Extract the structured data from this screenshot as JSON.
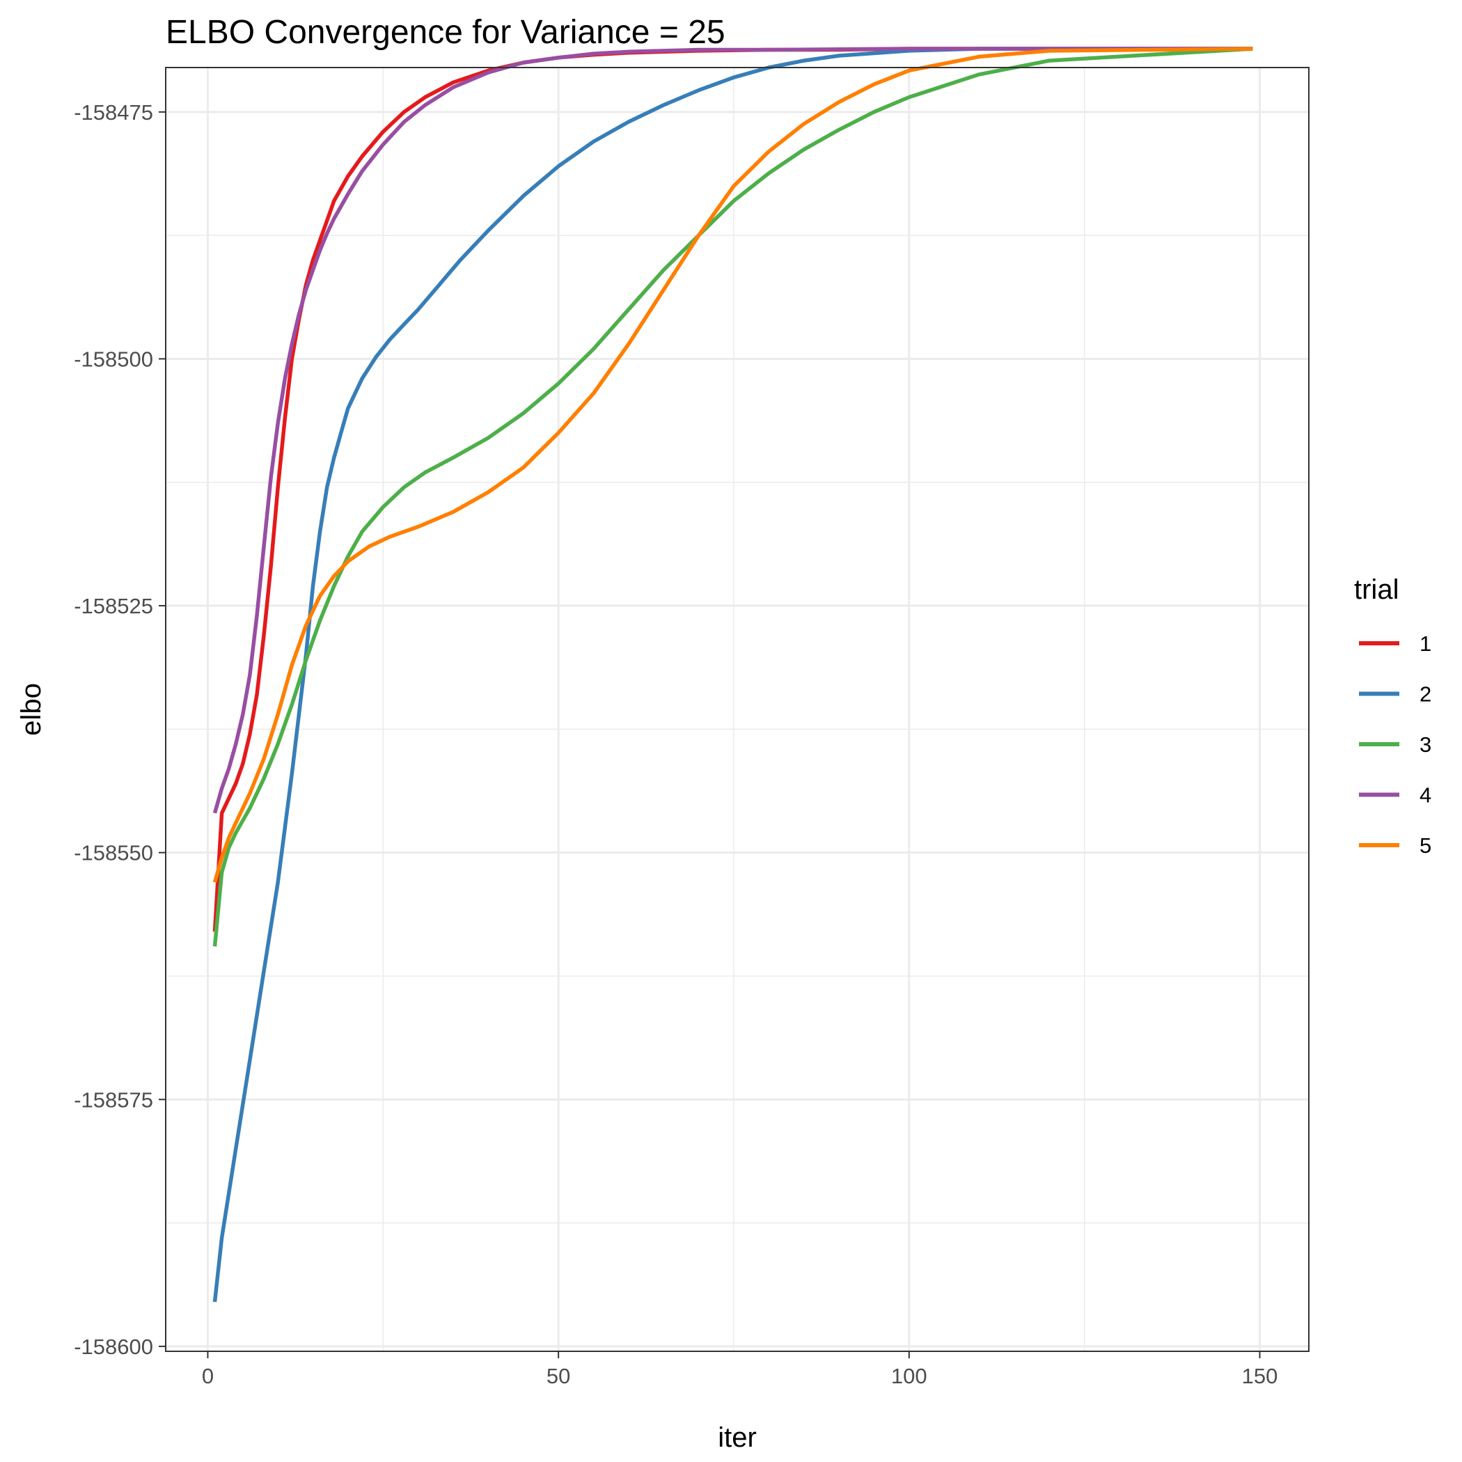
{
  "chart_data": {
    "type": "line",
    "title": "ELBO Convergence for Variance = 25",
    "xlabel": "iter",
    "ylabel": "elbo",
    "xlim": [
      -6,
      157
    ],
    "ylim": [
      -158600.5,
      -158470.5
    ],
    "x_ticks": [
      0,
      50,
      100,
      150
    ],
    "x_tick_labels": [
      "0",
      "50",
      "100",
      "150"
    ],
    "y_ticks": [
      -158600,
      -158575,
      -158550,
      -158525,
      -158500,
      -158475
    ],
    "y_tick_labels": [
      "-158600",
      "-158575",
      "-158550",
      "-158525",
      "-158500",
      "-158475"
    ],
    "x_minor_ticks": [
      25,
      75,
      125
    ],
    "y_minor_ticks": [
      -158587.5,
      -158562.5,
      -158537.5,
      -158512.5,
      -158487.5
    ],
    "grid": true,
    "legend": {
      "title": "trial",
      "position": "right"
    },
    "series": [
      {
        "name": "1",
        "color": "#e41a1c",
        "x": [
          1,
          2,
          3,
          4,
          5,
          6,
          7,
          8,
          9,
          10,
          11,
          12,
          13,
          14,
          15,
          16,
          17,
          18,
          20,
          22,
          25,
          28,
          31,
          35,
          40,
          45,
          50,
          55,
          60,
          70,
          80,
          90,
          100,
          149
        ],
        "y": [
          -158558,
          -158546,
          -158544.5,
          -158543,
          -158541,
          -158538,
          -158534,
          -158528,
          -158521,
          -158513,
          -158506,
          -158500,
          -158496,
          -158492.5,
          -158490,
          -158488,
          -158486,
          -158484,
          -158481.5,
          -158479.5,
          -158477,
          -158475,
          -158473.5,
          -158472,
          -158470.8,
          -158470,
          -158469.5,
          -158469.2,
          -158469,
          -158468.8,
          -158468.7,
          -158468.7,
          -158468.6,
          -158468.6
        ]
      },
      {
        "name": "2",
        "color": "#377eb8",
        "x": [
          1,
          2,
          4,
          6,
          8,
          10,
          12,
          14,
          15,
          16,
          17,
          18,
          19,
          20,
          22,
          24,
          26,
          28,
          30,
          33,
          36,
          40,
          45,
          50,
          55,
          60,
          65,
          70,
          75,
          80,
          85,
          90,
          100,
          110,
          149
        ],
        "y": [
          -158595.5,
          -158589,
          -158580,
          -158571,
          -158562,
          -158553,
          -158542,
          -158530,
          -158523,
          -158517.5,
          -158513,
          -158510,
          -158507.5,
          -158505,
          -158502,
          -158499.8,
          -158498,
          -158496.5,
          -158495,
          -158492.5,
          -158490,
          -158487,
          -158483.5,
          -158480.5,
          -158478,
          -158476,
          -158474.3,
          -158472.8,
          -158471.5,
          -158470.5,
          -158469.8,
          -158469.3,
          -158468.8,
          -158468.6,
          -158468.6
        ]
      },
      {
        "name": "3",
        "color": "#4daf4a",
        "x": [
          1,
          2,
          3,
          4,
          6,
          8,
          10,
          12,
          14,
          16,
          18,
          20,
          22,
          25,
          28,
          31,
          35,
          40,
          45,
          50,
          55,
          60,
          65,
          70,
          75,
          80,
          85,
          90,
          95,
          100,
          110,
          120,
          149
        ],
        "y": [
          -158559.5,
          -158552,
          -158549.5,
          -158548,
          -158545.5,
          -158542.5,
          -158539,
          -158535,
          -158530.5,
          -158526.5,
          -158523,
          -158520,
          -158517.5,
          -158515,
          -158513,
          -158511.5,
          -158510,
          -158508,
          -158505.5,
          -158502.5,
          -158499,
          -158495,
          -158491,
          -158487.5,
          -158484,
          -158481.2,
          -158478.8,
          -158476.8,
          -158475,
          -158473.5,
          -158471.2,
          -158469.8,
          -158468.6
        ]
      },
      {
        "name": "4",
        "color": "#984ea3",
        "x": [
          1,
          2,
          3,
          4,
          5,
          6,
          7,
          8,
          9,
          10,
          11,
          12,
          13,
          14,
          15,
          16,
          17,
          18,
          20,
          22,
          25,
          28,
          31,
          35,
          40,
          45,
          50,
          55,
          60,
          70,
          80,
          100,
          149
        ],
        "y": [
          -158546,
          -158543.5,
          -158541.5,
          -158539,
          -158536,
          -158532,
          -158526,
          -158519,
          -158512,
          -158506.5,
          -158502,
          -158498.5,
          -158495.5,
          -158493,
          -158491,
          -158489,
          -158487.3,
          -158485.8,
          -158483.3,
          -158481,
          -158478.3,
          -158476,
          -158474.3,
          -158472.5,
          -158471,
          -158470,
          -158469.5,
          -158469.1,
          -158468.9,
          -158468.7,
          -158468.7,
          -158468.6,
          -158468.6
        ]
      },
      {
        "name": "5",
        "color": "#ff7f00",
        "x": [
          1,
          2,
          3,
          4,
          6,
          8,
          10,
          12,
          14,
          16,
          18,
          20,
          23,
          26,
          30,
          35,
          40,
          45,
          50,
          55,
          60,
          65,
          70,
          75,
          80,
          85,
          90,
          95,
          100,
          110,
          120,
          149
        ],
        "y": [
          -158553,
          -158550.5,
          -158548.5,
          -158547,
          -158544,
          -158540.5,
          -158536,
          -158531,
          -158527,
          -158524,
          -158522,
          -158520.5,
          -158519,
          -158518,
          -158517,
          -158515.5,
          -158513.5,
          -158511,
          -158507.5,
          -158503.5,
          -158498.5,
          -158493,
          -158487.5,
          -158482.5,
          -158479,
          -158476.2,
          -158474,
          -158472.2,
          -158470.8,
          -158469.4,
          -158468.8,
          -158468.6
        ]
      }
    ]
  }
}
